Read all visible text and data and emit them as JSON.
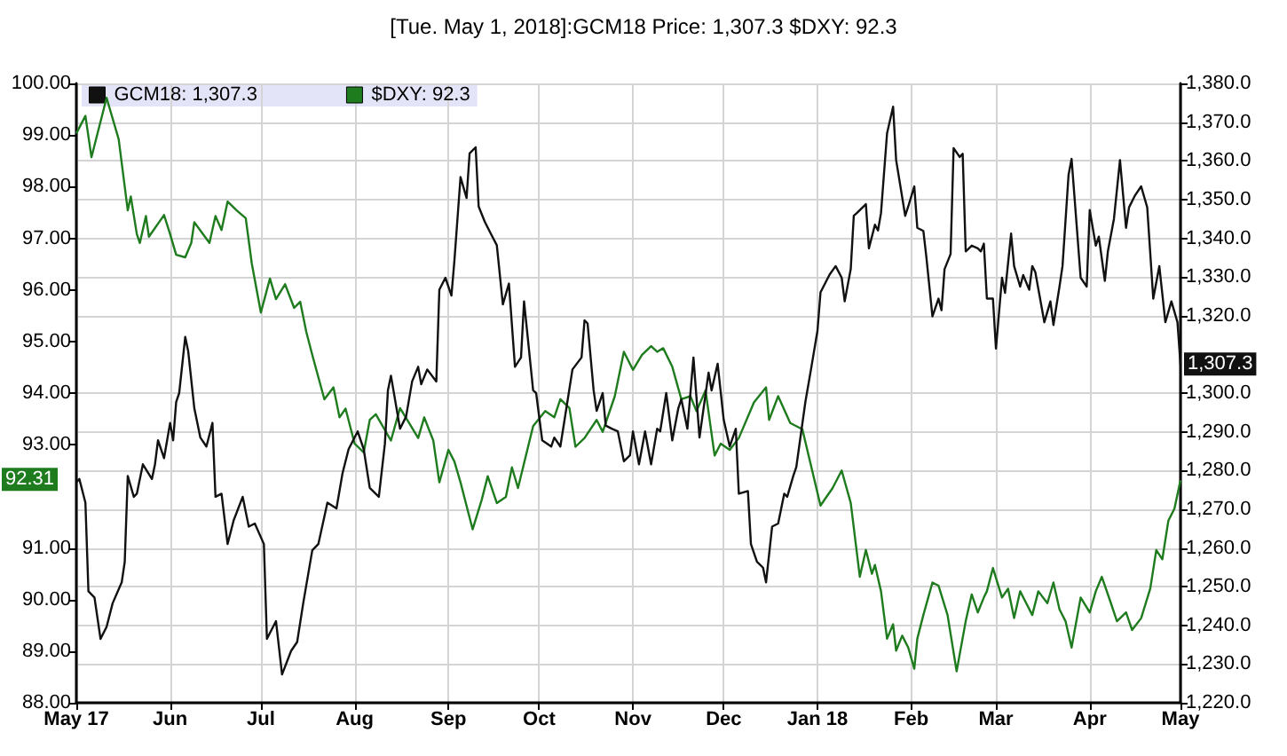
{
  "chart_data": {
    "type": "line",
    "title": "[Tue. May 1, 2018]:GCM18 Price: 1,307.3 $DXY: 92.3",
    "xlim": [
      "2017-05-01",
      "2018-05-01"
    ],
    "xticks": [
      {
        "value": "2017-05-01",
        "label": "May 17"
      },
      {
        "value": "2017-06-01",
        "label": "Jun"
      },
      {
        "value": "2017-07-01",
        "label": "Jul"
      },
      {
        "value": "2017-08-01",
        "label": "Aug"
      },
      {
        "value": "2017-09-01",
        "label": "Sep"
      },
      {
        "value": "2017-10-01",
        "label": "Oct"
      },
      {
        "value": "2017-11-01",
        "label": "Nov"
      },
      {
        "value": "2017-12-01",
        "label": "Dec"
      },
      {
        "value": "2018-01-01",
        "label": "Jan 18"
      },
      {
        "value": "2018-02-01",
        "label": "Feb"
      },
      {
        "value": "2018-03-01",
        "label": "Mar"
      },
      {
        "value": "2018-04-01",
        "label": "Apr"
      },
      {
        "value": "2018-05-01",
        "label": "May"
      }
    ],
    "ylim": [
      88,
      100
    ],
    "yticks": [
      {
        "value": 88,
        "label": "88.00"
      },
      {
        "value": 89,
        "label": "89.00"
      },
      {
        "value": 90,
        "label": "90.00"
      },
      {
        "value": 91,
        "label": "91.00"
      },
      {
        "value": 93,
        "label": "93.00"
      },
      {
        "value": 94,
        "label": "94.00"
      },
      {
        "value": 95,
        "label": "95.00"
      },
      {
        "value": 96,
        "label": "96.00"
      },
      {
        "value": 97,
        "label": "97.00"
      },
      {
        "value": 98,
        "label": "98.00"
      },
      {
        "value": 99,
        "label": "99.00"
      },
      {
        "value": 100,
        "label": "100.00"
      }
    ],
    "y2lim": [
      1220,
      1380
    ],
    "y2ticks": [
      {
        "value": 1220,
        "label": "1,220.0"
      },
      {
        "value": 1230,
        "label": "1,230.0"
      },
      {
        "value": 1240,
        "label": "1,240.0"
      },
      {
        "value": 1250,
        "label": "1,250.0"
      },
      {
        "value": 1260,
        "label": "1,260.0"
      },
      {
        "value": 1270,
        "label": "1,270.0"
      },
      {
        "value": 1280,
        "label": "1,280.0"
      },
      {
        "value": 1290,
        "label": "1,290.0"
      },
      {
        "value": 1300,
        "label": "1,300.0"
      },
      {
        "value": 1320,
        "label": "1,320.0"
      },
      {
        "value": 1330,
        "label": "1,330.0"
      },
      {
        "value": 1340,
        "label": "1,340.0"
      },
      {
        "value": 1350,
        "label": "1,350.0"
      },
      {
        "value": 1360,
        "label": "1,360.0"
      },
      {
        "value": 1370,
        "label": "1,370.0"
      },
      {
        "value": 1380,
        "label": "1,380.0"
      }
    ],
    "grid": true,
    "legend": "top left",
    "marker": "none",
    "line_style": "solid",
    "annotations": [
      "1,307.3",
      "92.31"
    ],
    "series": [
      {
        "name": "GCM18: 1,307.3",
        "color": "#111111",
        "axis": "y2",
        "x": [
          "2017-05-01",
          "2017-05-02",
          "2017-05-04",
          "2017-05-05",
          "2017-05-07",
          "2017-05-09",
          "2017-05-11",
          "2017-05-13",
          "2017-05-16",
          "2017-05-17",
          "2017-05-18",
          "2017-05-20",
          "2017-05-21",
          "2017-05-23",
          "2017-05-26",
          "2017-05-27",
          "2017-05-28",
          "2017-05-30",
          "2017-06-01",
          "2017-06-02",
          "2017-06-03",
          "2017-06-04",
          "2017-06-06",
          "2017-06-07",
          "2017-06-09",
          "2017-06-11",
          "2017-06-13",
          "2017-06-15",
          "2017-06-16",
          "2017-06-18",
          "2017-06-20",
          "2017-06-22",
          "2017-06-25",
          "2017-06-27",
          "2017-06-29",
          "2017-07-02",
          "2017-07-03",
          "2017-07-06",
          "2017-07-08",
          "2017-07-11",
          "2017-07-13",
          "2017-07-15",
          "2017-07-18",
          "2017-07-20",
          "2017-07-23",
          "2017-07-26",
          "2017-07-28",
          "2017-07-30",
          "2017-08-02",
          "2017-08-04",
          "2017-08-06",
          "2017-08-09",
          "2017-08-11",
          "2017-08-12",
          "2017-08-13",
          "2017-08-16",
          "2017-08-18",
          "2017-08-20",
          "2017-08-22",
          "2017-08-23",
          "2017-08-25",
          "2017-08-28",
          "2017-08-29",
          "2017-08-31",
          "2017-09-02",
          "2017-09-03",
          "2017-09-05",
          "2017-09-07",
          "2017-09-08",
          "2017-09-10",
          "2017-09-11",
          "2017-09-13",
          "2017-09-15",
          "2017-09-17",
          "2017-09-19",
          "2017-09-21",
          "2017-09-23",
          "2017-09-25",
          "2017-09-26",
          "2017-09-27",
          "2017-09-29",
          "2017-09-30",
          "2017-10-02",
          "2017-10-05",
          "2017-10-06",
          "2017-10-08",
          "2017-10-10",
          "2017-10-12",
          "2017-10-15",
          "2017-10-16",
          "2017-10-17",
          "2017-10-19",
          "2017-10-20",
          "2017-10-22",
          "2017-10-23",
          "2017-10-25",
          "2017-10-27",
          "2017-10-29",
          "2017-10-31",
          "2017-11-01",
          "2017-11-03",
          "2017-11-05",
          "2017-11-07",
          "2017-11-09",
          "2017-11-10",
          "2017-11-12",
          "2017-11-14",
          "2017-11-16",
          "2017-11-17",
          "2017-11-19",
          "2017-11-21",
          "2017-11-23",
          "2017-11-26",
          "2017-11-27",
          "2017-11-29",
          "2017-12-01",
          "2017-12-03",
          "2017-12-05",
          "2017-12-06",
          "2017-12-09",
          "2017-12-10",
          "2017-12-12",
          "2017-12-14",
          "2017-12-15",
          "2017-12-17",
          "2017-12-19",
          "2017-12-21",
          "2017-12-22",
          "2017-12-24",
          "2017-12-25",
          "2017-12-28",
          "2017-12-30",
          "2018-01-01",
          "2018-01-02",
          "2018-01-05",
          "2018-01-07",
          "2018-01-09",
          "2018-01-10",
          "2018-01-12",
          "2018-01-13",
          "2018-01-14",
          "2018-01-17",
          "2018-01-18",
          "2018-01-20",
          "2018-01-21",
          "2018-01-22",
          "2018-01-24",
          "2018-01-26",
          "2018-01-27",
          "2018-01-30",
          "2018-01-31",
          "2018-02-02",
          "2018-02-03",
          "2018-02-05",
          "2018-02-06",
          "2018-02-08",
          "2018-02-10",
          "2018-02-11",
          "2018-02-12",
          "2018-02-14",
          "2018-02-15",
          "2018-02-17",
          "2018-02-18",
          "2018-02-19",
          "2018-02-21",
          "2018-02-23",
          "2018-02-24",
          "2018-02-25",
          "2018-02-26",
          "2018-02-28",
          "2018-03-01",
          "2018-03-03",
          "2018-03-04",
          "2018-03-06",
          "2018-03-07",
          "2018-03-09",
          "2018-03-10",
          "2018-03-12",
          "2018-03-13",
          "2018-03-14",
          "2018-03-17",
          "2018-03-19",
          "2018-03-20",
          "2018-03-22",
          "2018-03-23",
          "2018-03-25",
          "2018-03-26",
          "2018-03-29",
          "2018-03-31",
          "2018-04-01",
          "2018-04-03",
          "2018-04-04",
          "2018-04-06",
          "2018-04-07",
          "2018-04-09",
          "2018-04-11",
          "2018-04-13",
          "2018-04-14",
          "2018-04-16",
          "2018-04-18",
          "2018-04-20",
          "2018-04-22",
          "2018-04-24",
          "2018-04-26",
          "2018-04-28",
          "2018-04-30",
          "2018-05-01"
        ],
        "values": [
          1277.0,
          1277.8,
          1271.7,
          1248.8,
          1247.2,
          1236.5,
          1239.6,
          1245.7,
          1251.1,
          1256.4,
          1278.6,
          1273.2,
          1274.0,
          1281.6,
          1277.8,
          1281.6,
          1287.8,
          1283.2,
          1292.3,
          1287.8,
          1297.7,
          1300.0,
          1314.5,
          1310.7,
          1296.1,
          1288.5,
          1286.2,
          1292.3,
          1273.2,
          1274.0,
          1261.0,
          1267.1,
          1273.2,
          1265.5,
          1266.3,
          1261.0,
          1236.5,
          1241.1,
          1227.3,
          1233.4,
          1235.7,
          1245.7,
          1259.4,
          1261.0,
          1271.7,
          1270.2,
          1279.3,
          1285.5,
          1290.1,
          1285.5,
          1275.5,
          1273.2,
          1286.9,
          1300.7,
          1304.5,
          1290.8,
          1293.9,
          1303.0,
          1306.8,
          1302.3,
          1306.1,
          1303.0,
          1326.7,
          1329.8,
          1325.2,
          1334.4,
          1355.8,
          1350.4,
          1361.9,
          1363.5,
          1348.2,
          1344.3,
          1341.2,
          1338.2,
          1322.9,
          1328.3,
          1306.8,
          1309.2,
          1323.7,
          1316.1,
          1300.7,
          1300.0,
          1287.8,
          1286.2,
          1288.5,
          1286.2,
          1296.1,
          1306.1,
          1309.2,
          1318.8,
          1318.0,
          1300.7,
          1295.4,
          1300.0,
          1291.6,
          1290.8,
          1290.1,
          1282.4,
          1283.9,
          1290.1,
          1281.6,
          1290.1,
          1281.6,
          1290.8,
          1290.1,
          1300.0,
          1287.8,
          1296.1,
          1298.4,
          1290.8,
          1309.2,
          1288.5,
          1305.3,
          1300.7,
          1307.6,
          1293.1,
          1286.2,
          1290.8,
          1274.0,
          1274.7,
          1261.0,
          1256.4,
          1254.9,
          1251.1,
          1265.5,
          1266.3,
          1274.0,
          1273.2,
          1278.6,
          1280.9,
          1297.7,
          1306.8,
          1316.1,
          1326.0,
          1330.6,
          1332.8,
          1329.8,
          1323.7,
          1332.1,
          1345.8,
          1346.5,
          1348.8,
          1337.4,
          1343.5,
          1342.0,
          1346.5,
          1367.1,
          1374.0,
          1360.2,
          1345.8,
          1348.2,
          1353.4,
          1342.7,
          1341.9,
          1335.1,
          1319.8,
          1324.4,
          1321.4,
          1332.0,
          1335.9,
          1363.3,
          1361.0,
          1361.8,
          1336.6,
          1338.1,
          1337.4,
          1336.6,
          1338.6,
          1324.4,
          1324.4,
          1311.5,
          1329.8,
          1325.9,
          1341.2,
          1332.8,
          1327.5,
          1330.5,
          1326.7,
          1332.8,
          1331.3,
          1318.3,
          1323.7,
          1317.6,
          1327.5,
          1332.8,
          1356.4,
          1360.5,
          1329.8,
          1327.5,
          1347.3,
          1338.1,
          1340.4,
          1329.0,
          1336.6,
          1345.0,
          1360.2,
          1342.7,
          1348.0,
          1351.1,
          1353.4,
          1348.0,
          1324.4,
          1332.8,
          1318.3,
          1323.7,
          1318.3,
          1307.3
        ]
      },
      {
        "name": "$DXY: 92.3",
        "color": "#1e7b1e",
        "x": [
          "2017-05-01",
          "2017-05-04",
          "2017-05-06",
          "2017-05-11",
          "2017-05-15",
          "2017-05-18",
          "2017-05-19",
          "2017-05-21",
          "2017-05-22",
          "2017-05-24",
          "2017-05-25",
          "2017-05-30",
          "2017-06-01",
          "2017-06-03",
          "2017-06-06",
          "2017-06-08",
          "2017-06-09",
          "2017-06-14",
          "2017-06-16",
          "2017-06-18",
          "2017-06-20",
          "2017-06-23",
          "2017-06-26",
          "2017-06-28",
          "2017-07-01",
          "2017-07-04",
          "2017-07-06",
          "2017-07-09",
          "2017-07-12",
          "2017-07-14",
          "2017-07-16",
          "2017-07-18",
          "2017-07-22",
          "2017-07-25",
          "2017-07-27",
          "2017-07-29",
          "2017-08-01",
          "2017-08-04",
          "2017-08-06",
          "2017-08-08",
          "2017-08-13",
          "2017-08-16",
          "2017-08-19",
          "2017-08-22",
          "2017-08-24",
          "2017-08-27",
          "2017-08-29",
          "2017-09-01",
          "2017-09-03",
          "2017-09-05",
          "2017-09-09",
          "2017-09-12",
          "2017-09-14",
          "2017-09-17",
          "2017-09-20",
          "2017-09-22",
          "2017-09-24",
          "2017-09-29",
          "2017-10-03",
          "2017-10-06",
          "2017-10-08",
          "2017-10-11",
          "2017-10-13",
          "2017-10-16",
          "2017-10-20",
          "2017-10-22",
          "2017-10-26",
          "2017-10-29",
          "2017-11-01",
          "2017-11-04",
          "2017-11-07",
          "2017-11-09",
          "2017-11-11",
          "2017-11-14",
          "2017-11-17",
          "2017-11-20",
          "2017-11-22",
          "2017-11-25",
          "2017-11-28",
          "2017-11-30",
          "2017-12-03",
          "2017-12-06",
          "2017-12-11",
          "2017-12-15",
          "2017-12-16",
          "2017-12-19",
          "2017-12-23",
          "2017-12-27",
          "2017-12-30",
          "2018-01-02",
          "2018-01-06",
          "2018-01-09",
          "2018-01-12",
          "2018-01-15",
          "2018-01-17",
          "2018-01-19",
          "2018-01-20",
          "2018-01-22",
          "2018-01-24",
          "2018-01-26",
          "2018-01-27",
          "2018-01-29",
          "2018-01-31",
          "2018-02-02",
          "2018-02-03",
          "2018-02-05",
          "2018-02-08",
          "2018-02-10",
          "2018-02-13",
          "2018-02-16",
          "2018-02-19",
          "2018-02-21",
          "2018-02-23",
          "2018-02-25",
          "2018-02-26",
          "2018-02-28",
          "2018-03-03",
          "2018-03-05",
          "2018-03-07",
          "2018-03-09",
          "2018-03-11",
          "2018-03-13",
          "2018-03-15",
          "2018-03-18",
          "2018-03-20",
          "2018-03-22",
          "2018-03-24",
          "2018-03-26",
          "2018-03-29",
          "2018-04-01",
          "2018-04-03",
          "2018-04-05",
          "2018-04-08",
          "2018-04-10",
          "2018-04-13",
          "2018-04-15",
          "2018-04-18",
          "2018-04-21",
          "2018-04-23",
          "2018-04-25",
          "2018-04-27",
          "2018-04-29",
          "2018-05-01"
        ],
        "values": [
          99.03,
          99.37,
          98.57,
          99.72,
          98.92,
          97.54,
          97.81,
          97.08,
          96.91,
          97.43,
          97.03,
          97.45,
          97.08,
          96.68,
          96.63,
          96.91,
          97.31,
          96.91,
          97.43,
          97.16,
          97.71,
          97.54,
          97.39,
          96.51,
          95.56,
          96.22,
          95.82,
          96.11,
          95.65,
          95.77,
          95.19,
          94.74,
          93.88,
          94.11,
          93.53,
          93.7,
          93.02,
          92.85,
          93.48,
          93.59,
          93.08,
          93.71,
          93.42,
          93.13,
          93.53,
          93.08,
          92.27,
          92.9,
          92.67,
          92.27,
          91.36,
          91.93,
          92.39,
          91.87,
          91.99,
          92.56,
          92.16,
          93.36,
          93.65,
          93.53,
          93.88,
          93.71,
          92.96,
          93.13,
          93.48,
          93.25,
          93.94,
          94.8,
          94.45,
          94.74,
          94.91,
          94.8,
          94.87,
          94.51,
          93.88,
          93.94,
          93.65,
          94.05,
          92.79,
          93.02,
          92.9,
          93.13,
          93.82,
          94.11,
          93.48,
          93.94,
          93.42,
          93.3,
          92.56,
          91.82,
          92.16,
          92.5,
          91.87,
          90.44,
          90.96,
          90.5,
          90.67,
          90.16,
          89.24,
          89.52,
          89.01,
          89.3,
          89.07,
          88.66,
          89.24,
          89.7,
          90.33,
          90.27,
          89.7,
          88.61,
          89.58,
          90.1,
          89.75,
          90.04,
          90.16,
          90.61,
          90.04,
          90.21,
          89.64,
          90.16,
          89.93,
          89.7,
          90.16,
          89.93,
          90.33,
          89.81,
          89.58,
          89.07,
          90.04,
          89.75,
          90.16,
          90.44,
          89.93,
          89.58,
          89.75,
          89.41,
          89.64,
          90.21,
          90.96,
          90.78,
          91.53,
          91.76,
          92.31
        ]
      }
    ]
  }
}
